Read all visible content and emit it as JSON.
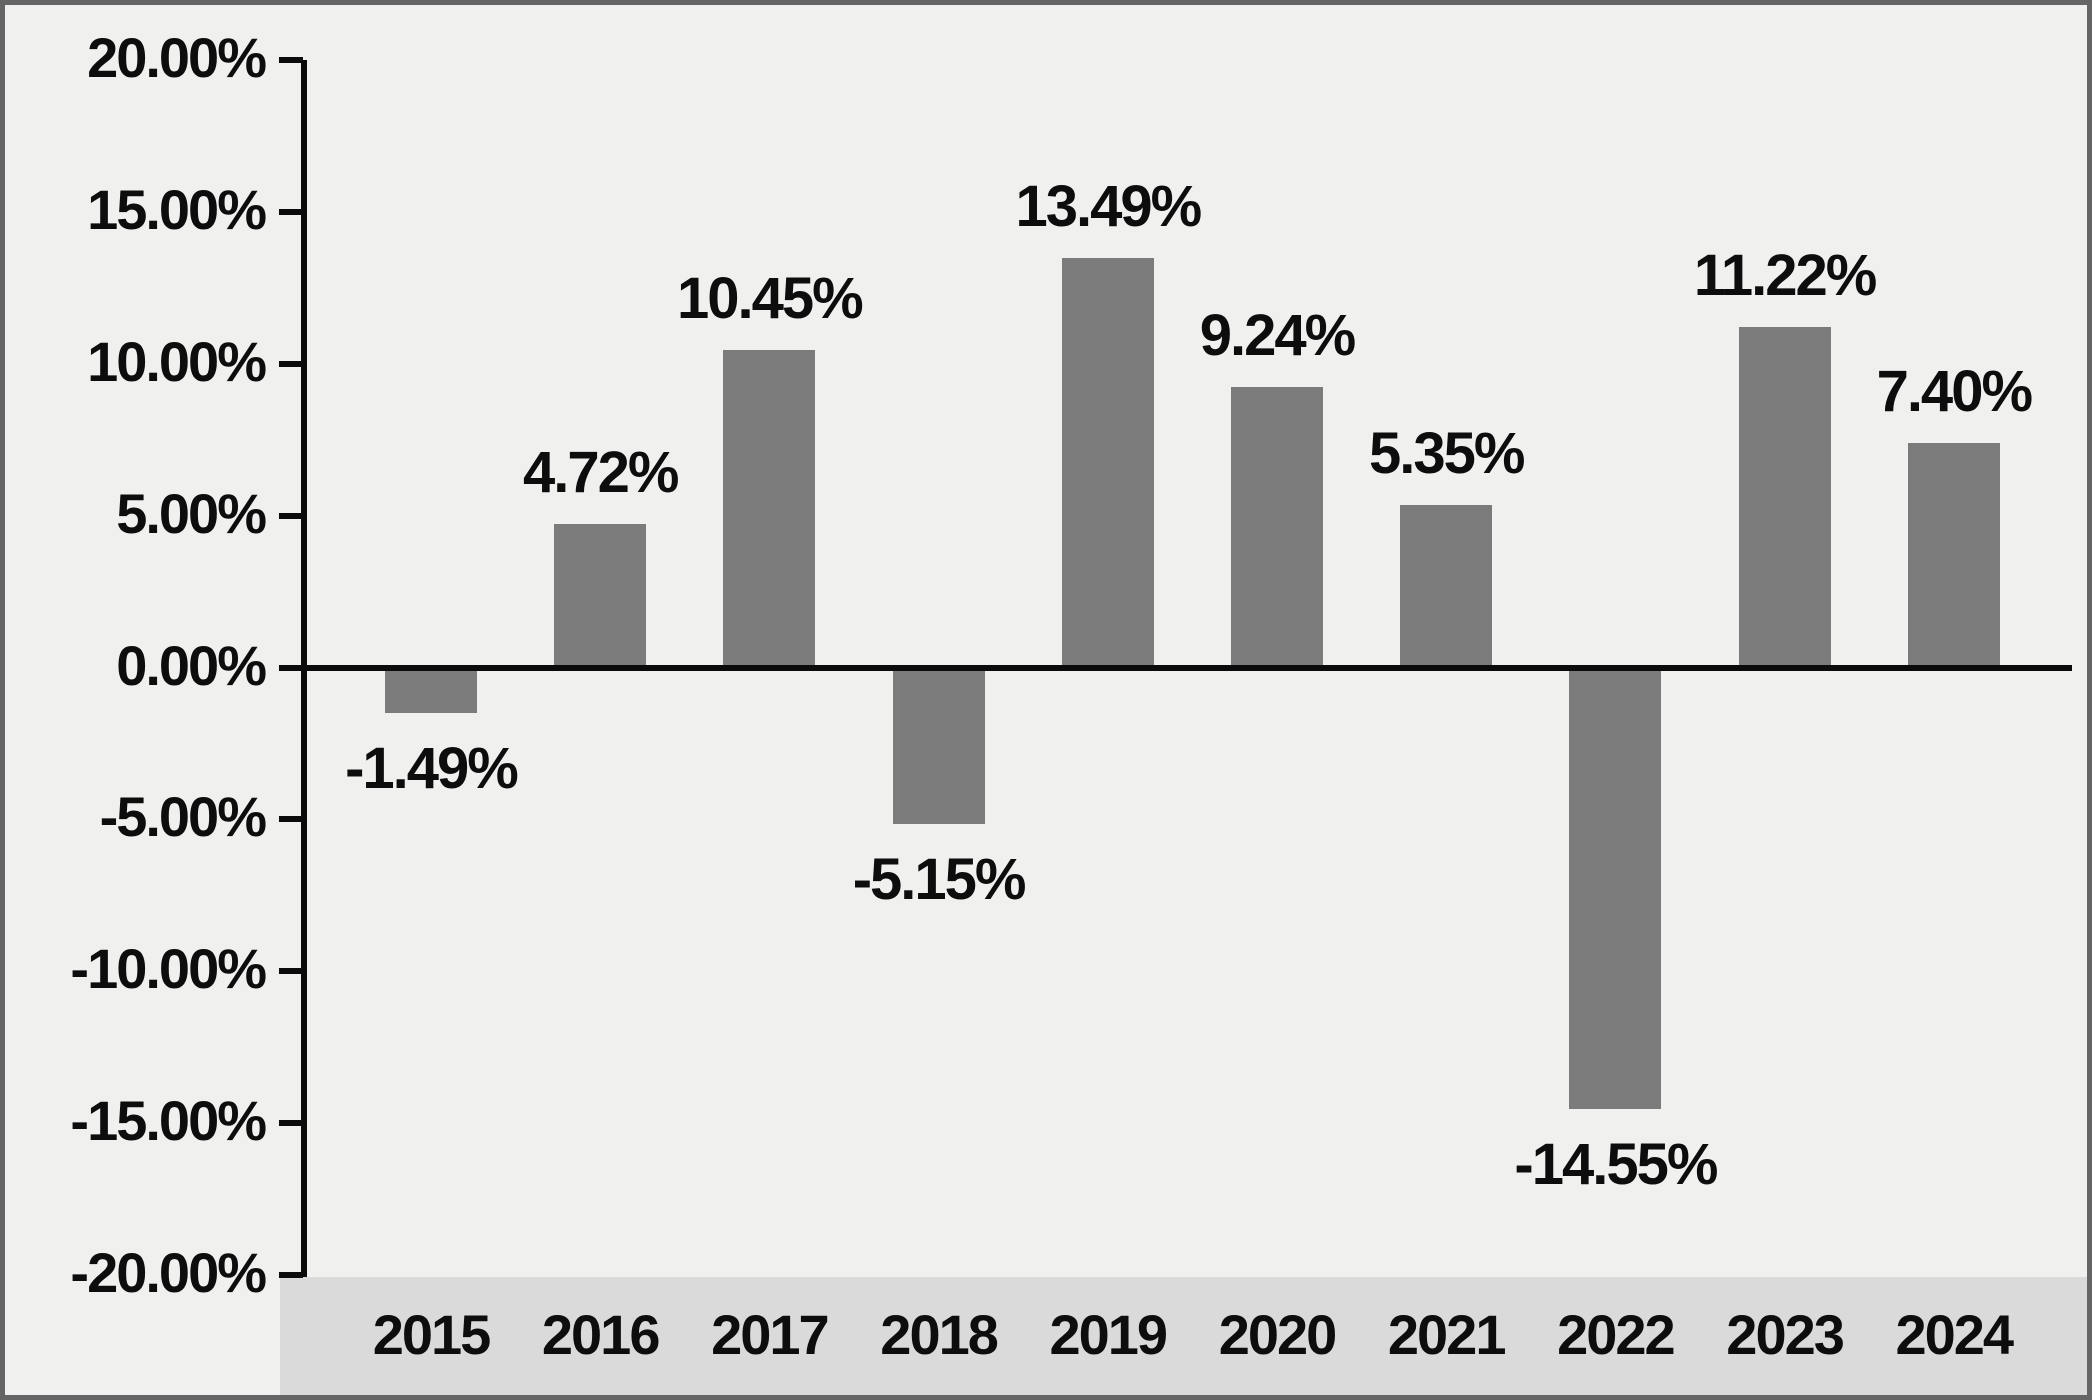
{
  "chart_data": {
    "type": "bar",
    "title": "",
    "xlabel": "",
    "ylabel": "",
    "categories": [
      "2015",
      "2016",
      "2017",
      "2018",
      "2019",
      "2020",
      "2021",
      "2022",
      "2023",
      "2024"
    ],
    "values": [
      -1.49,
      4.72,
      10.45,
      -5.15,
      13.49,
      9.24,
      5.35,
      -14.55,
      11.22,
      7.4
    ],
    "data_labels": [
      "-1.49%",
      "4.72%",
      "10.45%",
      "-5.15%",
      "13.49%",
      "9.24%",
      "5.35%",
      "-14.55%",
      "11.22%",
      "7.40%"
    ],
    "y_tick_labels": [
      "20.00%",
      "15.00%",
      "10.00%",
      "5.00%",
      "0.00%",
      "-5.00%",
      "-10.00%",
      "-15.00%",
      "-20.00%"
    ],
    "ylim": [
      -20,
      20
    ],
    "y_tick_step": 5,
    "grid": "off",
    "legend": "none",
    "colors": {
      "bar": "#7b7b7b",
      "plot_background": "#f0f1ef",
      "x_band_background": "#dadada",
      "axis": "#0b0b0b",
      "text": "#0d0d0d",
      "border": "#656565"
    }
  }
}
